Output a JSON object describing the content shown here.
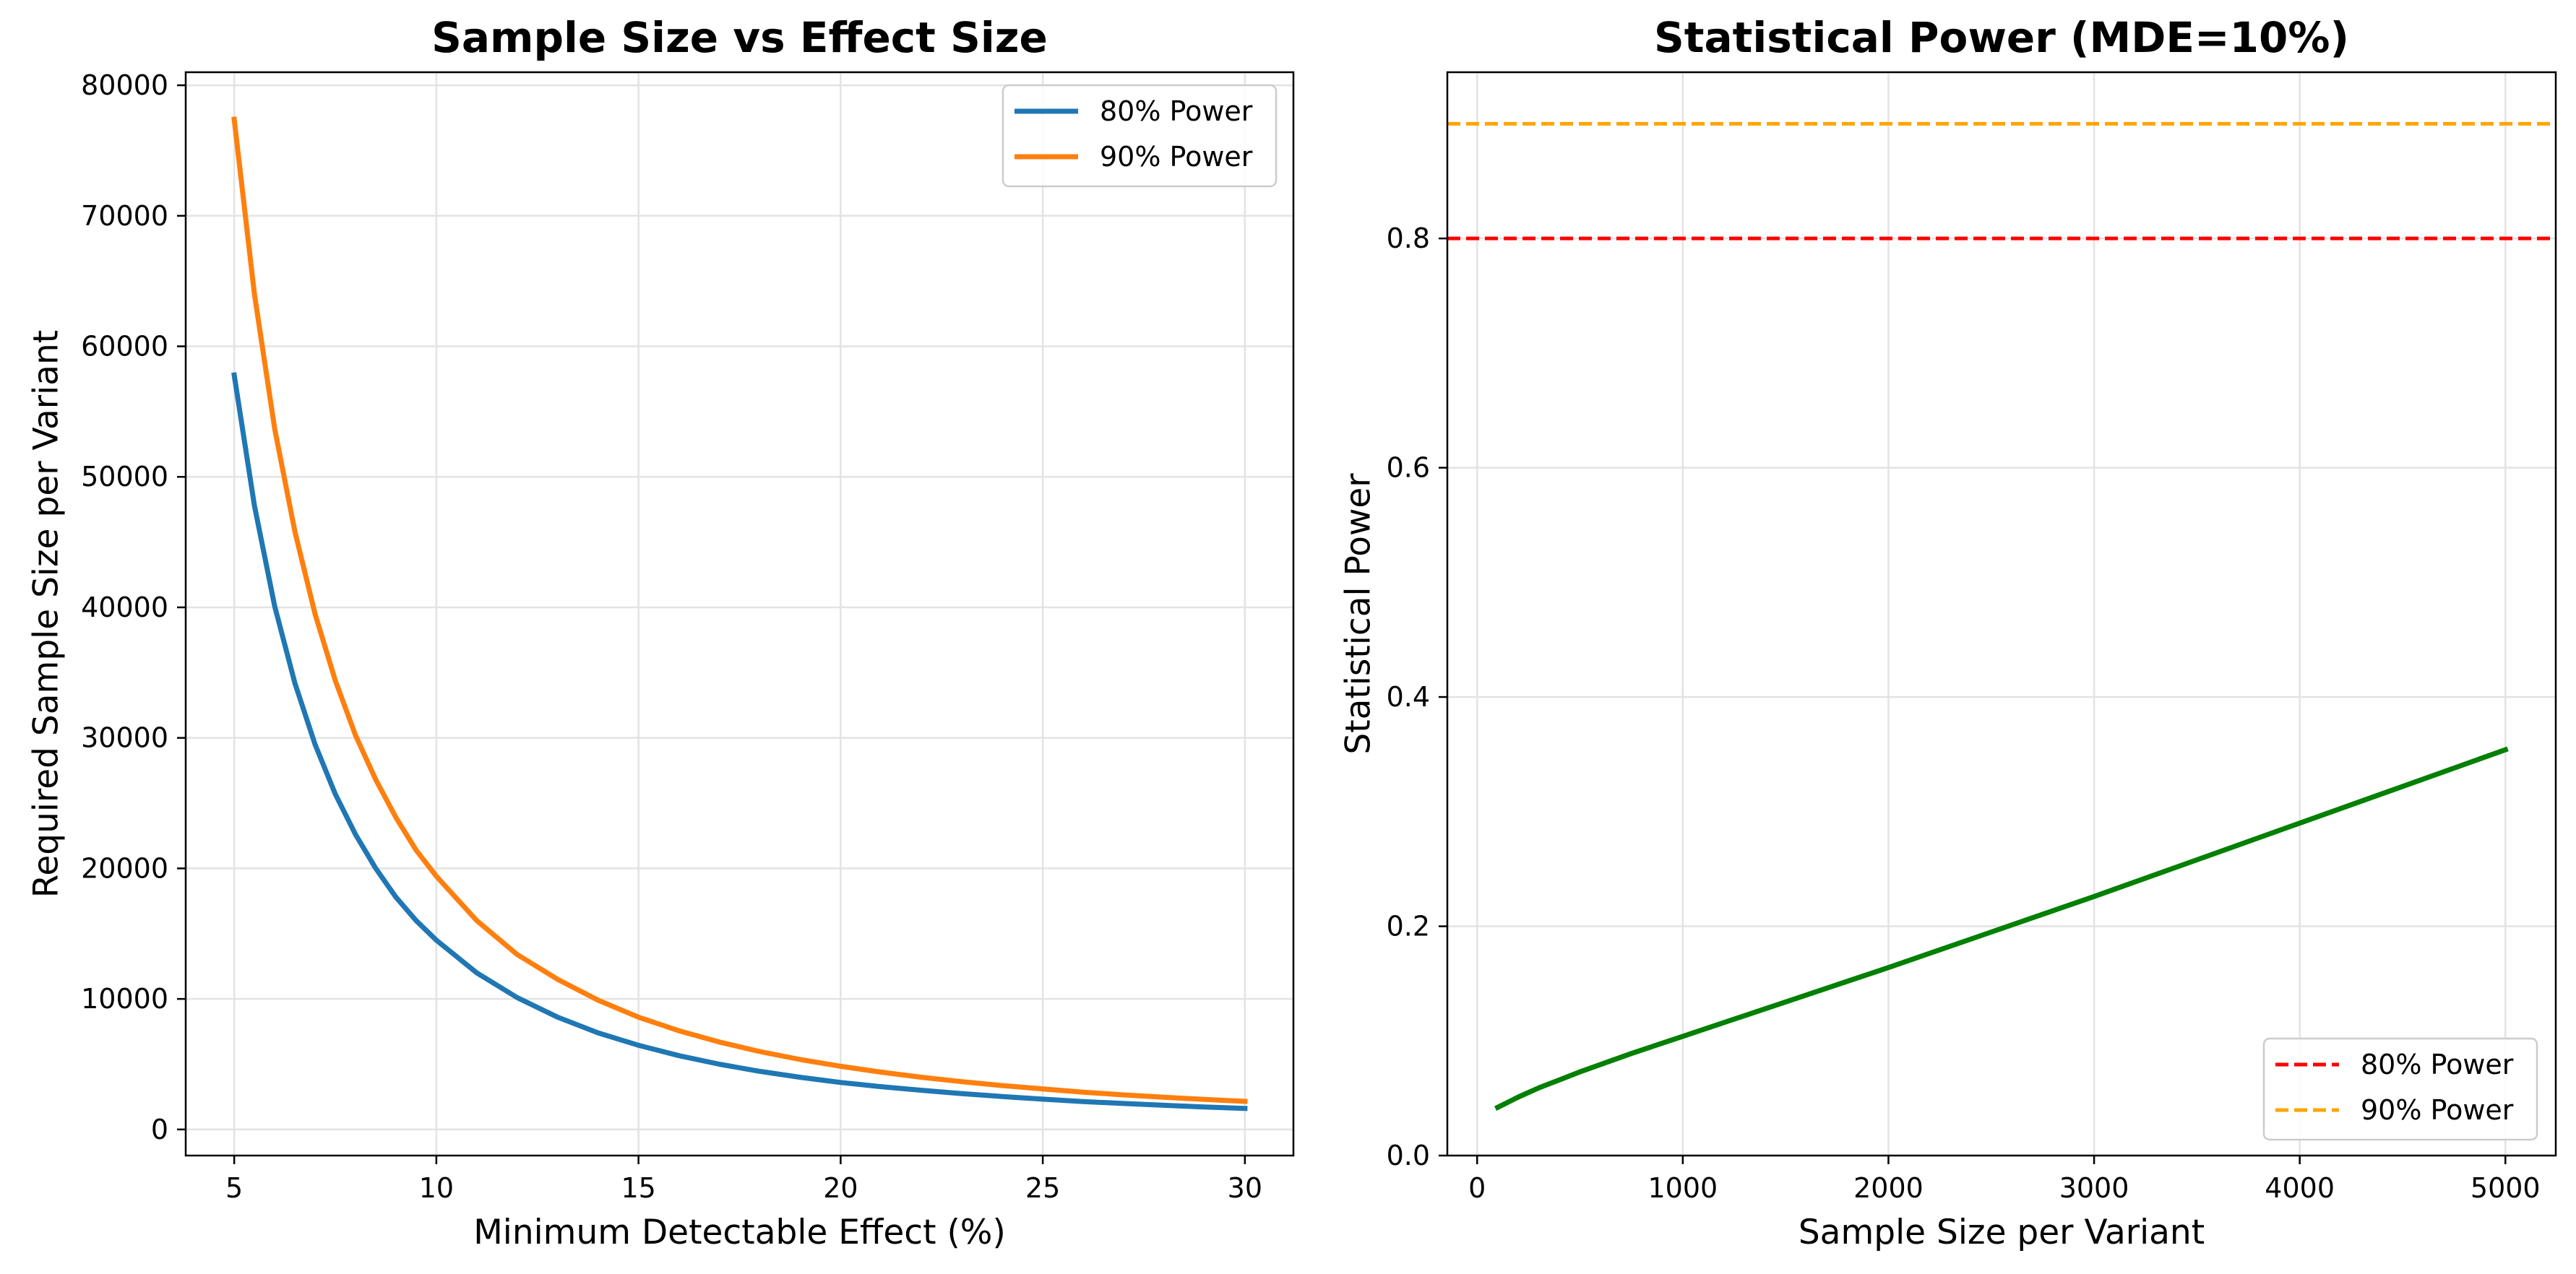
{
  "chart_data": [
    {
      "type": "line",
      "title": "Sample Size vs Effect Size",
      "xlabel": "Minimum Detectable Effect (%)",
      "ylabel": "Required Sample Size per Variant",
      "xlim": [
        3.8,
        31.2
      ],
      "ylim": [
        -2000,
        81000
      ],
      "xticks": [
        5,
        10,
        15,
        20,
        25,
        30
      ],
      "yticks": [
        0,
        10000,
        20000,
        30000,
        40000,
        50000,
        60000,
        70000,
        80000
      ],
      "grid": true,
      "legend_position": "upper right",
      "series": [
        {
          "name": "80% Power",
          "color": "#1f77b4",
          "style": "solid",
          "x": [
            5,
            5.5,
            6,
            6.5,
            7,
            7.5,
            8,
            8.5,
            9,
            9.5,
            10,
            11,
            12,
            13,
            14,
            15,
            16,
            17,
            18,
            19,
            20,
            21,
            22,
            23,
            24,
            25,
            26,
            27,
            28,
            29,
            30
          ],
          "y": [
            57800,
            47800,
            40100,
            34200,
            29500,
            25700,
            22600,
            20000,
            17800,
            16000,
            14500,
            12000,
            10100,
            8600,
            7400,
            6450,
            5650,
            5000,
            4450,
            4000,
            3600,
            3280,
            3000,
            2740,
            2520,
            2320,
            2140,
            1990,
            1850,
            1720,
            1610
          ]
        },
        {
          "name": "90% Power",
          "color": "#ff7f0e",
          "style": "solid",
          "x": [
            5,
            5.5,
            6,
            6.5,
            7,
            7.5,
            8,
            8.5,
            9,
            9.5,
            10,
            11,
            12,
            13,
            14,
            15,
            16,
            17,
            18,
            19,
            20,
            21,
            22,
            23,
            24,
            25,
            26,
            27,
            28,
            29,
            30
          ],
          "y": [
            77400,
            64000,
            53700,
            45800,
            39500,
            34400,
            30200,
            26800,
            23900,
            21400,
            19400,
            16000,
            13400,
            11500,
            9900,
            8600,
            7560,
            6700,
            5970,
            5360,
            4840,
            4390,
            4000,
            3660,
            3360,
            3100,
            2860,
            2650,
            2470,
            2300,
            2150
          ]
        }
      ]
    },
    {
      "type": "line",
      "title": "Statistical Power (MDE=10%)",
      "xlabel": "Sample Size per Variant",
      "ylabel": "Statistical Power",
      "xlim": [
        -145,
        5245
      ],
      "ylim": [
        0,
        0.945
      ],
      "xticks": [
        0,
        1000,
        2000,
        3000,
        4000,
        5000
      ],
      "yticks": [
        0.0,
        0.2,
        0.4,
        0.6,
        0.8
      ],
      "ytick_labels": [
        "0.0",
        "0.2",
        "0.4",
        "0.6",
        "0.8"
      ],
      "grid": true,
      "legend_position": "lower right",
      "series": [
        {
          "name": "",
          "color": "#008000",
          "style": "solid",
          "x": [
            100,
            200,
            300,
            400,
            500,
            750,
            1000,
            1250,
            1500,
            1750,
            2000,
            2500,
            3000,
            3500,
            4000,
            4500,
            5000
          ],
          "y": [
            0.042,
            0.051,
            0.059,
            0.066,
            0.073,
            0.089,
            0.104,
            0.119,
            0.134,
            0.149,
            0.164,
            0.195,
            0.226,
            0.258,
            0.29,
            0.322,
            0.354
          ]
        }
      ],
      "hlines": [
        {
          "name": "80% Power",
          "y": 0.8,
          "color": "#ff0000",
          "style": "dashed"
        },
        {
          "name": "90% Power",
          "y": 0.9,
          "color": "#ffa500",
          "style": "dashed"
        }
      ]
    }
  ]
}
